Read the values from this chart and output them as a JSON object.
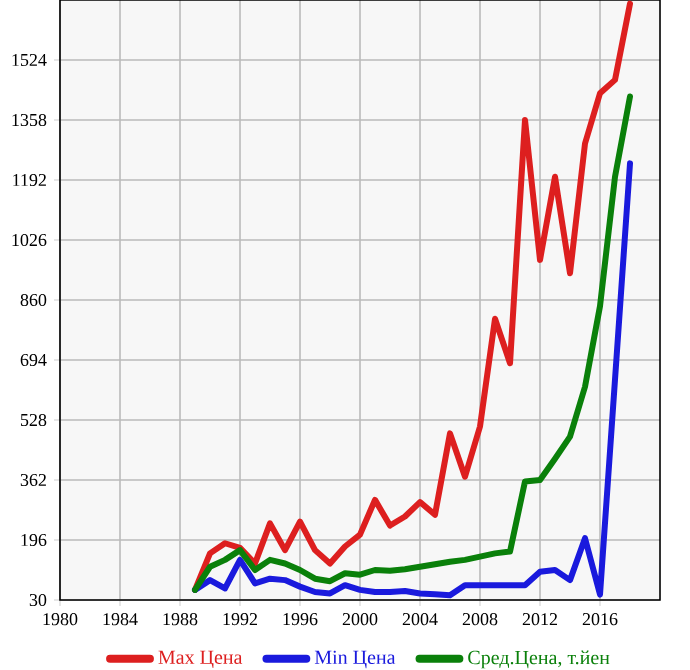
{
  "chart_data": {
    "type": "line",
    "x": [
      1989,
      1990,
      1991,
      1992,
      1993,
      1994,
      1995,
      1996,
      1997,
      1998,
      1999,
      2000,
      2001,
      2002,
      2003,
      2004,
      2005,
      2006,
      2007,
      2008,
      2009,
      2010,
      2011,
      2012,
      2013,
      2014,
      2015,
      2016,
      2017,
      2018
    ],
    "series": [
      {
        "name": "Max Цена",
        "color": "#dd1f1f",
        "values": [
          58,
          159,
          187,
          174,
          131,
          242,
          168,
          247,
          168,
          131,
          178,
          211,
          307,
          236,
          261,
          301,
          266,
          491,
          371,
          510,
          808,
          685,
          1358,
          971,
          1201,
          934,
          1293,
          1432,
          1469,
          1680
        ]
      },
      {
        "name": "Min Цена",
        "color": "#1a1add",
        "values": [
          58,
          85,
          62,
          141,
          76,
          89,
          85,
          67,
          52,
          48,
          71,
          58,
          52,
          52,
          55,
          48,
          46,
          43,
          71,
          71,
          71,
          71,
          71,
          108,
          113,
          85,
          201,
          45,
          640,
          1238
        ]
      },
      {
        "name": "Сред.Цена, т.йен",
        "color": "#0a800a",
        "values": [
          58,
          122,
          141,
          168,
          113,
          141,
          131,
          113,
          89,
          82,
          104,
          100,
          113,
          111,
          115,
          122,
          129,
          136,
          141,
          150,
          159,
          164,
          358,
          362,
          421,
          482,
          620,
          843,
          1201,
          1423
        ]
      }
    ],
    "xlim": [
      1980,
      2020
    ],
    "xticks": [
      1980,
      1984,
      1988,
      1992,
      1996,
      2000,
      2004,
      2008,
      2012,
      2016
    ],
    "ylim": [
      30,
      1690
    ],
    "yticks": [
      30,
      196,
      362,
      528,
      694,
      860,
      1026,
      1192,
      1358,
      1524
    ],
    "grid": true,
    "legend": "bottom",
    "marker": "none",
    "line_style": "solid"
  }
}
